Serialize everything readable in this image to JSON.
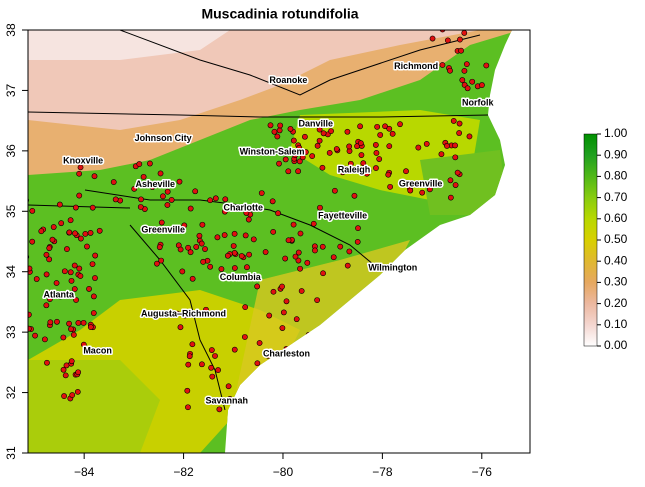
{
  "map": {
    "title": "Muscadinia rotundifolia",
    "xlim": [
      -85.13,
      -75.03
    ],
    "ylim": [
      31,
      38
    ],
    "xticks": [
      {
        "value": -84,
        "label": "−84"
      },
      {
        "value": -82,
        "label": "−82"
      },
      {
        "value": -80,
        "label": "−80"
      },
      {
        "value": -78,
        "label": "−78"
      },
      {
        "value": -76,
        "label": "−76"
      }
    ],
    "yticks": [
      31,
      32,
      33,
      34,
      35,
      36,
      37,
      38
    ],
    "cities": [
      {
        "name": "Richmond",
        "lon": -77.32,
        "lat": 37.39
      },
      {
        "name": "Roanoke",
        "lon": -79.89,
        "lat": 37.16
      },
      {
        "name": "Norfolk",
        "lon": -76.08,
        "lat": 36.79
      },
      {
        "name": "Danville",
        "lon": -79.34,
        "lat": 36.44
      },
      {
        "name": "Johnson City",
        "lon": -82.41,
        "lat": 36.2
      },
      {
        "name": "Winston-Salem",
        "lon": -80.22,
        "lat": 35.98
      },
      {
        "name": "Knoxville",
        "lon": -84.02,
        "lat": 35.83
      },
      {
        "name": "Raleigh",
        "lon": -78.57,
        "lat": 35.68
      },
      {
        "name": "Greenville",
        "lon": -77.23,
        "lat": 35.45
      },
      {
        "name": "Asheville",
        "lon": -82.57,
        "lat": 35.44
      },
      {
        "name": "Charlotte",
        "lon": -80.8,
        "lat": 35.05
      },
      {
        "name": "Fayetteville",
        "lon": -78.8,
        "lat": 34.92
      },
      {
        "name": "Greenville",
        "lon": -82.41,
        "lat": 34.69
      },
      {
        "name": "Wilmington",
        "lon": -77.79,
        "lat": 34.06
      },
      {
        "name": "Columbia",
        "lon": -80.86,
        "lat": 33.9
      },
      {
        "name": "Atlanta",
        "lon": -84.51,
        "lat": 33.61
      },
      {
        "name": "Augusta–Richmond",
        "lon": -82.0,
        "lat": 33.3
      },
      {
        "name": "Macon",
        "lon": -83.73,
        "lat": 32.69
      },
      {
        "name": "Charleston",
        "lon": -79.93,
        "lat": 32.64
      },
      {
        "name": "Savannah",
        "lon": -81.13,
        "lat": 31.86
      }
    ],
    "colorbar": {
      "lim": [
        0,
        1
      ],
      "ticks": [
        {
          "value": 0,
          "label": "0.00"
        },
        {
          "value": 0.1,
          "label": "0.10"
        },
        {
          "value": 0.2,
          "label": "0.20"
        },
        {
          "value": 0.3,
          "label": "0.30"
        },
        {
          "value": 0.4,
          "label": "0.40"
        },
        {
          "value": 0.5,
          "label": "0.50"
        },
        {
          "value": 0.6,
          "label": "0.60"
        },
        {
          "value": 0.7,
          "label": "0.70"
        },
        {
          "value": 0.8,
          "label": "0.80"
        },
        {
          "value": 0.9,
          "label": "0.90"
        },
        {
          "value": 1,
          "label": "1.00"
        }
      ],
      "colors": [
        "#ffffff",
        "#f4d6d0",
        "#ecb8a0",
        "#e6a860",
        "#e0b830",
        "#d8d000",
        "#b8d800",
        "#88cc10",
        "#50b818",
        "#20a020",
        "#009000"
      ]
    }
  }
}
